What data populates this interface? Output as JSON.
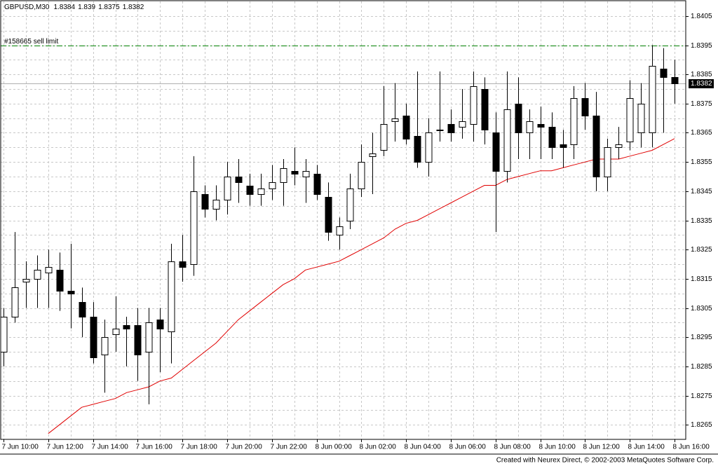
{
  "chart_data": {
    "type": "candlestick",
    "symbol": "GBPUSD,M30",
    "footer": "Created with Neurex Direct, © 2002-2003 MetaQuotes Software Corp.",
    "x": [
      "7 Jun 10:00",
      null,
      null,
      null,
      "7 Jun 12:00",
      null,
      null,
      null,
      "7 Jun 14:00",
      null,
      null,
      null,
      "7 Jun 16:00",
      null,
      null,
      null,
      "7 Jun 18:00",
      null,
      null,
      null,
      "7 Jun 20:00",
      null,
      null,
      null,
      "7 Jun 22:00",
      null,
      null,
      null,
      "8 Jun 00:00",
      null,
      null,
      null,
      "8 Jun 02:00",
      null,
      null,
      null,
      "8 Jun 04:00",
      null,
      null,
      null,
      "8 Jun 06:00",
      null,
      null,
      null,
      "8 Jun 08:00",
      null,
      null,
      null,
      "8 Jun 10:00",
      null,
      null,
      null,
      "8 Jun 12:00",
      null,
      null,
      null,
      "8 Jun 14:00",
      null,
      null,
      null,
      "8 Jun 16:00"
    ],
    "open": [
      1.829,
      1.8302,
      1.8314,
      1.8315,
      1.8317,
      1.8318,
      1.8311,
      1.8307,
      1.8302,
      1.8289,
      1.8296,
      1.8299,
      1.8299,
      1.829,
      1.8301,
      1.8297,
      1.8321,
      1.832,
      1.8344,
      1.8339,
      1.8342,
      1.835,
      1.8347,
      1.8344,
      1.8346,
      1.8348,
      1.8352,
      1.835,
      1.8351,
      1.8343,
      1.833,
      1.8335,
      1.8346,
      1.8357,
      1.8359,
      1.8369,
      1.8371,
      1.8364,
      1.8355,
      1.8366,
      1.8368,
      1.8367,
      1.8368,
      1.838,
      1.8365,
      1.8352,
      1.8375,
      1.8365,
      1.8368,
      1.8367,
      1.8361,
      1.8361,
      1.8377,
      1.8371,
      1.835,
      1.836,
      1.8362,
      1.8365,
      1.8365,
      1.8387,
      1.8384
    ],
    "high": [
      1.8305,
      1.8331,
      1.8321,
      1.8323,
      1.8325,
      1.8324,
      1.8327,
      1.8312,
      1.8307,
      1.8301,
      1.8309,
      1.8302,
      1.8305,
      1.8305,
      1.8305,
      1.8327,
      1.833,
      1.8357,
      1.8347,
      1.8347,
      1.8355,
      1.8356,
      1.8351,
      1.8351,
      1.8354,
      1.8356,
      1.836,
      1.8356,
      1.8354,
      1.8348,
      1.8336,
      1.8351,
      1.8361,
      1.8365,
      1.8381,
      1.8382,
      1.8375,
      1.8386,
      1.837,
      1.8386,
      1.8373,
      1.838,
      1.8386,
      1.8384,
      1.8372,
      1.8386,
      1.8384,
      1.8373,
      1.8374,
      1.8372,
      1.8366,
      1.8381,
      1.8382,
      1.8379,
      1.8363,
      1.8367,
      1.8383,
      1.8382,
      1.8395,
      1.8394,
      1.839
    ],
    "low": [
      1.8285,
      1.83,
      1.8305,
      1.8305,
      1.8305,
      1.8304,
      1.8298,
      1.8295,
      1.8286,
      1.8276,
      1.829,
      1.8285,
      1.828,
      1.8272,
      1.8283,
      1.8286,
      1.8314,
      1.8316,
      1.8336,
      1.8335,
      1.8337,
      1.8341,
      1.834,
      1.834,
      1.8342,
      1.834,
      1.8347,
      1.8341,
      1.8342,
      1.8328,
      1.8325,
      1.8332,
      1.8343,
      1.8344,
      1.8357,
      1.8362,
      1.8361,
      1.8353,
      1.835,
      1.8362,
      1.8362,
      1.8363,
      1.8362,
      1.8361,
      1.8331,
      1.8348,
      1.8356,
      1.8356,
      1.8356,
      1.8356,
      1.8353,
      1.8356,
      1.8366,
      1.8345,
      1.8345,
      1.8356,
      1.8359,
      1.836,
      1.836,
      1.8365,
      1.8375
    ],
    "close": [
      1.8302,
      1.8312,
      1.8315,
      1.8318,
      1.8319,
      1.8311,
      1.831,
      1.8302,
      1.8288,
      1.8295,
      1.8298,
      1.8298,
      1.8289,
      1.83,
      1.8298,
      1.8321,
      1.8319,
      1.8345,
      1.8339,
      1.8342,
      1.835,
      1.8348,
      1.8344,
      1.8346,
      1.8348,
      1.8353,
      1.8351,
      1.8352,
      1.8344,
      1.8331,
      1.8333,
      1.8346,
      1.8355,
      1.8358,
      1.8368,
      1.837,
      1.8363,
      1.8355,
      1.8365,
      1.8366,
      1.8365,
      1.8369,
      1.8381,
      1.8366,
      1.8352,
      1.8373,
      1.8365,
      1.8369,
      1.8367,
      1.836,
      1.836,
      1.8377,
      1.8371,
      1.835,
      1.836,
      1.8361,
      1.8377,
      1.8375,
      1.8388,
      1.8384,
      1.8382
    ],
    "ma": {
      "color": "#e00000",
      "values": [
        null,
        null,
        null,
        null,
        1.8262,
        1.8265,
        1.8268,
        1.8271,
        1.8272,
        1.8273,
        1.8274,
        1.8276,
        1.8277,
        1.8278,
        1.828,
        1.8281,
        1.8284,
        1.8287,
        1.829,
        1.8293,
        1.8297,
        1.8301,
        1.8304,
        1.8307,
        1.831,
        1.8313,
        1.8315,
        1.8318,
        1.8319,
        1.832,
        1.8321,
        1.8323,
        1.8325,
        1.8327,
        1.8329,
        1.8332,
        1.8334,
        1.8335,
        1.8337,
        1.8339,
        1.8341,
        1.8343,
        1.8345,
        1.8347,
        1.8347,
        1.8349,
        1.835,
        1.8351,
        1.8352,
        1.8352,
        1.8353,
        1.8354,
        1.8355,
        1.8356,
        1.8356,
        1.8356,
        1.8357,
        1.8358,
        1.8359,
        1.8361,
        1.8363
      ]
    },
    "order": {
      "label": "#158665 sell limit",
      "value": 1.8395,
      "color": "#008000"
    },
    "bid": 1.8382,
    "ylim": [
      1.826,
      1.841
    ],
    "yticks": [
      1.8405,
      1.8395,
      1.8385,
      1.8375,
      1.8365,
      1.8355,
      1.8345,
      1.8335,
      1.8325,
      1.8315,
      1.8305,
      1.8295,
      1.8285,
      1.8275,
      1.8265
    ],
    "grid": true
  }
}
